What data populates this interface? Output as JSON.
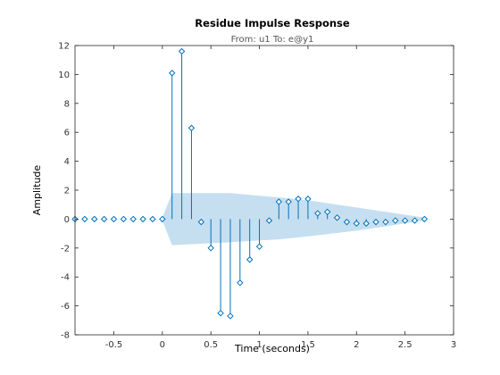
{
  "chart_data": {
    "type": "stem",
    "title": "Residue Impulse Response",
    "subtitle": "From: u1  To: e@y1",
    "xlabel": "Time (seconds)",
    "ylabel": "Amplitude",
    "xlim": [
      -0.9,
      3
    ],
    "ylim": [
      -8,
      12
    ],
    "xticks": [
      "-0.5",
      "0",
      "0.5",
      "1",
      "1.5",
      "2",
      "2.5",
      "3"
    ],
    "yticks": [
      "-8",
      "-6",
      "-4",
      "-2",
      "0",
      "2",
      "4",
      "6",
      "8",
      "10",
      "12"
    ],
    "grid": false,
    "colors": {
      "stem": "#0072bd",
      "band": "#c5dff0",
      "axis": "#262626"
    },
    "series": [
      {
        "x": [
          -0.9,
          -0.8,
          -0.7,
          -0.6,
          -0.5,
          -0.4,
          -0.3,
          -0.2,
          -0.1,
          0,
          0.1,
          0.2,
          0.3,
          0.4,
          0.5,
          0.6,
          0.7,
          0.8,
          0.9,
          1.0,
          1.1,
          1.2,
          1.3,
          1.4,
          1.5,
          1.6,
          1.7,
          1.8,
          1.9,
          2.0,
          2.1,
          2.2,
          2.3,
          2.4,
          2.5,
          2.6,
          2.7
        ],
        "y": [
          0,
          0,
          0,
          0,
          0,
          0,
          0,
          0,
          0,
          0,
          10.1,
          11.6,
          6.3,
          -0.2,
          -2.0,
          -6.5,
          -6.7,
          -4.4,
          -2.8,
          -1.9,
          -0.1,
          1.2,
          1.2,
          1.4,
          1.4,
          0.4,
          0.5,
          0.1,
          -0.2,
          -0.3,
          -0.3,
          -0.2,
          -0.2,
          -0.1,
          -0.1,
          -0.1,
          0
        ]
      }
    ],
    "confidence_band": {
      "x": [
        0,
        0.1,
        0.7,
        1.2,
        1.5,
        2.0,
        2.5,
        2.7
      ],
      "upper": [
        0.1,
        1.8,
        1.8,
        1.5,
        1.3,
        0.8,
        0.3,
        0.1
      ],
      "lower": [
        -0.1,
        -1.8,
        -1.6,
        -1.4,
        -1.2,
        -0.8,
        -0.3,
        -0.1
      ]
    }
  }
}
